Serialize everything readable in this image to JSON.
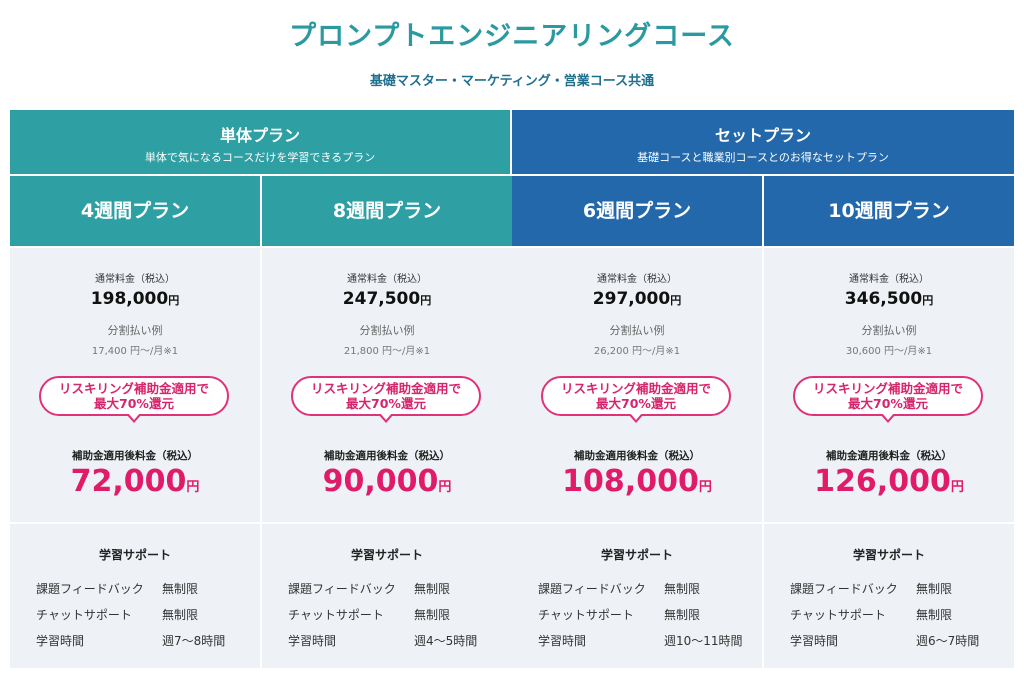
{
  "title": "プロンプトエンジニアリングコース",
  "subtitle": "基礎マスター・マーケティング・営業コース共通",
  "groups": [
    {
      "name": "単体プラン",
      "desc": "単体で気になるコースだけを学習できるプラン",
      "color": "#2e9fa3"
    },
    {
      "name": "セットプラン",
      "desc": "基礎コースと職業別コースとのお得なセットプラン",
      "color": "#2368aa"
    }
  ],
  "labels": {
    "regular_price": "通常料金（税込）",
    "split_example": "分割払い例",
    "badge_line1": "リスキリング補助金適用で",
    "badge_line2": "最大70%還元",
    "after_subsidy": "補助金適用後料金（税込）",
    "yen": "円",
    "support_title": "学習サポート",
    "feedback": "課題フィードバック",
    "chat": "チャットサポート",
    "study_time": "学習時間"
  },
  "plans": [
    {
      "name": "4週間プラン",
      "regular": "198,000",
      "split": "17,400 円〜/月※1",
      "after": "72,000",
      "feedback": "無制限",
      "chat": "無制限",
      "time": "週7〜8時間"
    },
    {
      "name": "8週間プラン",
      "regular": "247,500",
      "split": "21,800 円〜/月※1",
      "after": "90,000",
      "feedback": "無制限",
      "chat": "無制限",
      "time": "週4〜5時間"
    },
    {
      "name": "6週間プラン",
      "regular": "297,000",
      "split": "26,200 円〜/月※1",
      "after": "108,000",
      "feedback": "無制限",
      "chat": "無制限",
      "time": "週10〜11時間"
    },
    {
      "name": "10週間プラン",
      "regular": "346,500",
      "split": "30,600 円〜/月※1",
      "after": "126,000",
      "feedback": "無制限",
      "chat": "無制限",
      "time": "週6〜7時間"
    }
  ]
}
